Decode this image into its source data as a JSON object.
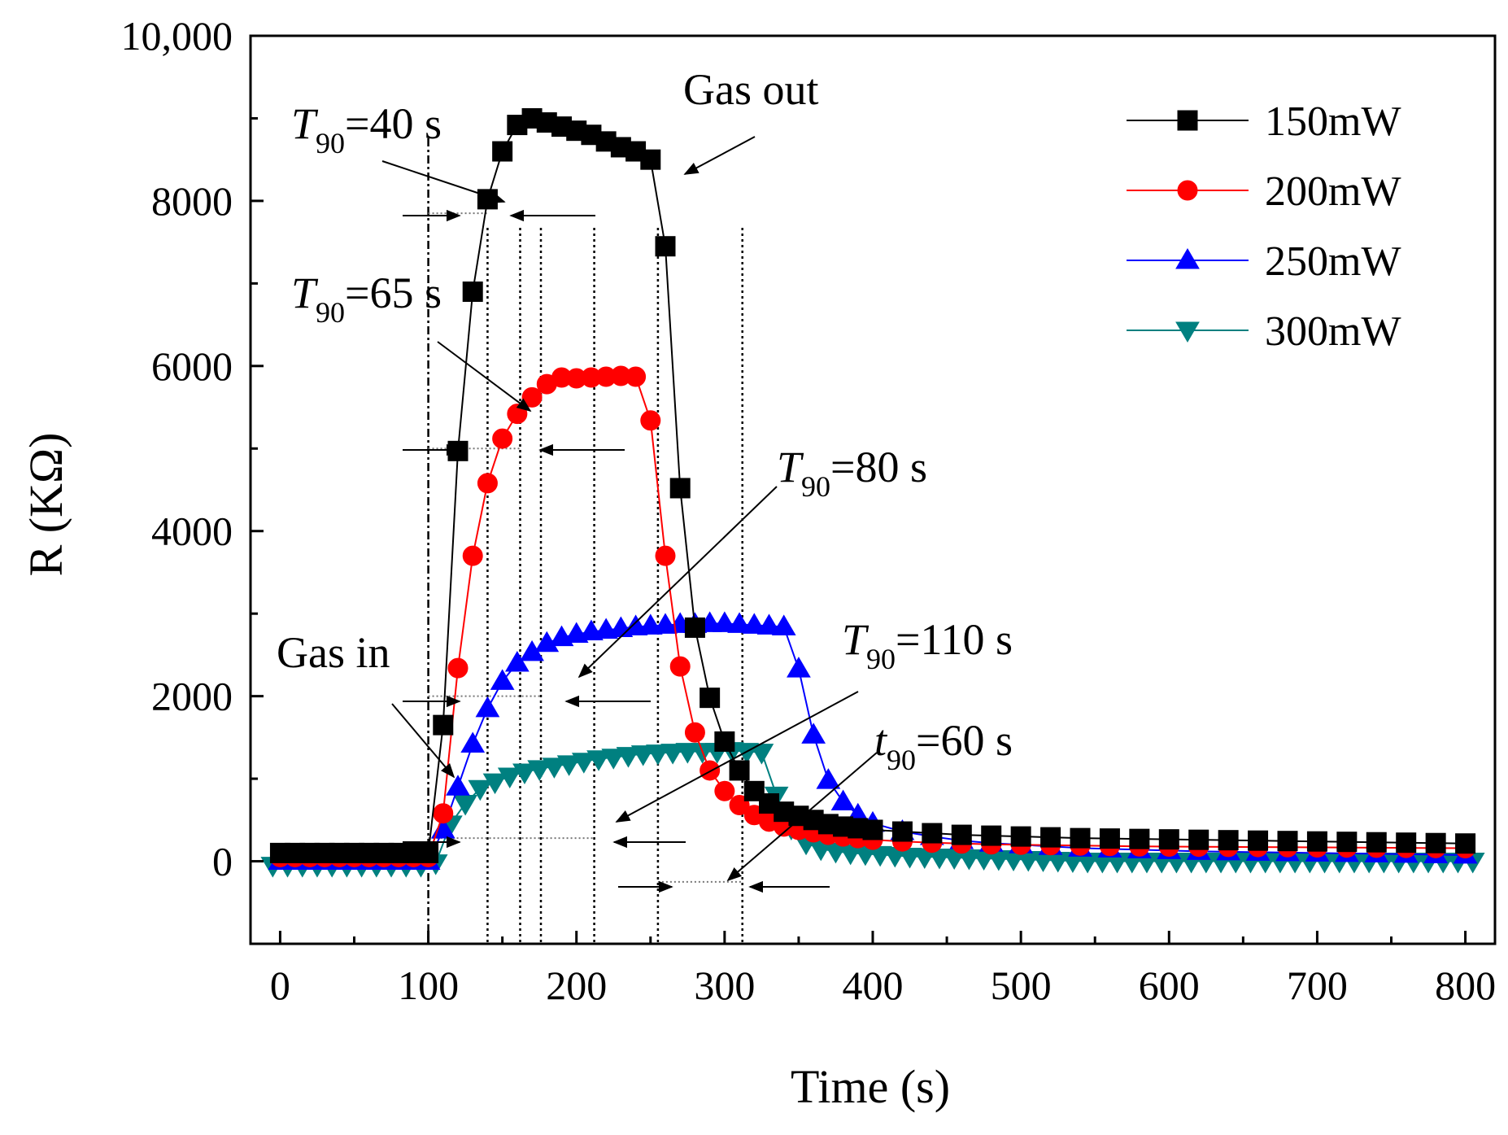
{
  "chart_data": {
    "type": "line",
    "title": "",
    "xlabel": "Time (s)",
    "ylabel": "R (KΩ)",
    "xlim": [
      -20,
      820
    ],
    "ylim": [
      -1000,
      10000
    ],
    "xticks": [
      0,
      100,
      200,
      300,
      400,
      500,
      600,
      700,
      800
    ],
    "xtick_labels": [
      "0",
      "100",
      "200",
      "300",
      "400",
      "500",
      "600",
      "700",
      "800"
    ],
    "yticks": [
      0,
      2000,
      4000,
      6000,
      8000,
      10000
    ],
    "ytick_labels": [
      "0",
      "2000",
      "4000",
      "6000",
      "8000",
      "10,000"
    ],
    "legend_position": "top-right",
    "series": [
      {
        "name": "150mW",
        "color": "#000000",
        "marker": "square",
        "x": [
          0,
          10,
          20,
          30,
          40,
          50,
          60,
          70,
          80,
          90,
          100,
          110,
          120,
          130,
          140,
          150,
          160,
          170,
          180,
          190,
          200,
          210,
          220,
          230,
          240,
          250,
          260,
          270,
          280,
          290,
          300,
          310,
          320,
          330,
          340,
          350,
          360,
          370,
          380,
          390,
          400,
          420,
          440,
          460,
          480,
          500,
          520,
          540,
          560,
          580,
          600,
          620,
          640,
          660,
          680,
          700,
          720,
          740,
          760,
          780,
          800
        ],
        "y": [
          100,
          100,
          100,
          100,
          100,
          100,
          100,
          100,
          100,
          100,
          100,
          1650,
          4970,
          6900,
          8020,
          8600,
          8920,
          9000,
          8950,
          8900,
          8850,
          8800,
          8720,
          8650,
          8600,
          8500,
          7450,
          4520,
          2830,
          1980,
          1450,
          1100,
          850,
          700,
          600,
          550,
          500,
          450,
          420,
          400,
          380,
          360,
          340,
          320,
          310,
          300,
          290,
          280,
          275,
          270,
          265,
          260,
          255,
          250,
          245,
          240,
          235,
          230,
          225,
          220,
          215
        ]
      },
      {
        "name": "200mW",
        "color": "#ff0000",
        "marker": "circle",
        "x": [
          0,
          10,
          20,
          30,
          40,
          50,
          60,
          70,
          80,
          90,
          100,
          110,
          120,
          130,
          140,
          150,
          160,
          170,
          180,
          190,
          200,
          210,
          220,
          230,
          240,
          250,
          260,
          270,
          280,
          290,
          300,
          310,
          320,
          330,
          340,
          350,
          360,
          370,
          380,
          390,
          400,
          420,
          440,
          460,
          480,
          500,
          520,
          540,
          560,
          580,
          600,
          620,
          640,
          660,
          680,
          700,
          720,
          740,
          760,
          780,
          800
        ],
        "y": [
          50,
          50,
          50,
          50,
          50,
          50,
          50,
          50,
          50,
          50,
          50,
          580,
          2340,
          3700,
          4580,
          5120,
          5420,
          5620,
          5780,
          5860,
          5850,
          5860,
          5870,
          5880,
          5870,
          5340,
          3700,
          2360,
          1560,
          1100,
          850,
          680,
          560,
          480,
          420,
          380,
          350,
          320,
          300,
          280,
          260,
          240,
          225,
          215,
          205,
          200,
          195,
          190,
          185,
          180,
          178,
          176,
          174,
          172,
          170,
          168,
          166,
          164,
          162,
          160,
          158
        ]
      },
      {
        "name": "250mW",
        "color": "#0000ff",
        "marker": "triangle-up",
        "x": [
          0,
          10,
          20,
          30,
          40,
          50,
          60,
          70,
          80,
          90,
          100,
          110,
          120,
          130,
          140,
          150,
          160,
          170,
          180,
          190,
          200,
          210,
          220,
          230,
          240,
          250,
          260,
          270,
          280,
          290,
          300,
          310,
          320,
          330,
          340,
          350,
          360,
          370,
          380,
          390,
          400,
          420,
          440,
          460,
          480,
          500,
          520,
          540,
          560,
          580,
          600,
          620,
          640,
          660,
          680,
          700,
          720,
          740,
          760,
          780,
          800
        ],
        "y": [
          0,
          0,
          0,
          0,
          0,
          0,
          0,
          0,
          0,
          0,
          0,
          380,
          900,
          1420,
          1850,
          2180,
          2400,
          2530,
          2640,
          2710,
          2750,
          2780,
          2800,
          2820,
          2840,
          2850,
          2860,
          2870,
          2870,
          2880,
          2880,
          2870,
          2860,
          2850,
          2840,
          2330,
          1530,
          980,
          720,
          560,
          460,
          360,
          300,
          250,
          220,
          200,
          180,
          160,
          150,
          140,
          130,
          120,
          115,
          110,
          105,
          100,
          95,
          90,
          85,
          80,
          75
        ]
      },
      {
        "name": "300mW",
        "color": "#008080",
        "marker": "triangle-down",
        "x": [
          -5,
          5,
          15,
          25,
          35,
          45,
          55,
          65,
          75,
          85,
          95,
          105,
          115,
          125,
          135,
          145,
          155,
          165,
          175,
          185,
          195,
          205,
          215,
          225,
          235,
          245,
          255,
          265,
          275,
          285,
          295,
          305,
          315,
          325,
          335,
          345,
          355,
          365,
          375,
          385,
          395,
          405,
          415,
          425,
          435,
          445,
          455,
          465,
          475,
          485,
          495,
          505,
          515,
          525,
          535,
          545,
          555,
          565,
          575,
          585,
          595,
          605,
          615,
          625,
          635,
          645,
          655,
          665,
          675,
          685,
          695,
          705,
          715,
          725,
          735,
          745,
          755,
          765,
          775,
          785,
          795,
          805
        ],
        "y": [
          -50,
          -50,
          -50,
          -50,
          -50,
          -50,
          -50,
          -50,
          -50,
          -50,
          -50,
          -20,
          450,
          700,
          880,
          960,
          1030,
          1080,
          1120,
          1150,
          1180,
          1210,
          1240,
          1260,
          1280,
          1300,
          1310,
          1320,
          1330,
          1330,
          1330,
          1340,
          1330,
          1320,
          800,
          400,
          220,
          150,
          120,
          100,
          90,
          80,
          70,
          60,
          55,
          50,
          45,
          40,
          35,
          30,
          25,
          20,
          15,
          10,
          5,
          0,
          0,
          0,
          0,
          0,
          0,
          0,
          0,
          0,
          0,
          0,
          0,
          0,
          0,
          0,
          0,
          0,
          0,
          0,
          0,
          0,
          0,
          0,
          0,
          0,
          0,
          0
        ]
      }
    ],
    "annotations": [
      {
        "id": "t40",
        "main": "T",
        "sub": "90",
        "rest": "=40 s"
      },
      {
        "id": "t65",
        "main": "T",
        "sub": "90",
        "rest": "=65 s"
      },
      {
        "id": "t80",
        "main": "T",
        "sub": "90",
        "rest": "=80 s"
      },
      {
        "id": "t110",
        "main": "T",
        "sub": "90",
        "rest": "=110 s"
      },
      {
        "id": "t60",
        "main": "t",
        "sub": "90",
        "rest": "=60 s"
      },
      {
        "id": "gas_in",
        "text": "Gas in"
      },
      {
        "id": "gas_out",
        "text": "Gas out"
      }
    ],
    "vlines_x": [
      100,
      140,
      162,
      176,
      212,
      255,
      312
    ],
    "hlines": [
      {
        "x1": 100,
        "x2": 140,
        "y": 7850
      },
      {
        "x1": 100,
        "x2": 162,
        "y": 5000
      },
      {
        "x1": 100,
        "x2": 176,
        "y": 2000
      },
      {
        "x1": 100,
        "x2": 212,
        "y": 280
      },
      {
        "x1": 255,
        "x2": 312,
        "y": -250
      }
    ]
  }
}
